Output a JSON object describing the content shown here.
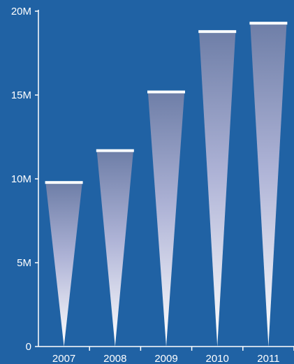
{
  "colors": {
    "background": "#2062a4",
    "axis": "#ffffff",
    "text": "#ffffff",
    "bar_top": "#6f7fa8",
    "bar_mid": "#aeb3d6",
    "bar_bottom": "#ffffff",
    "cap": "#ffffff"
  },
  "chart_data": {
    "type": "bar",
    "bar_shape": "inverted-triangle",
    "categories": [
      "2007",
      "2008",
      "2009",
      "2010",
      "2011"
    ],
    "values": [
      9.7,
      11.6,
      15.1,
      18.7,
      19.2
    ],
    "value_unit": "millions",
    "ylim": [
      0,
      20
    ],
    "yticks": [
      0,
      5,
      10,
      15,
      20
    ],
    "ytick_labels": [
      "0",
      "5M",
      "10M",
      "15M",
      "20M"
    ],
    "title": "",
    "xlabel": "",
    "ylabel": "",
    "grid": false,
    "legend": "none"
  }
}
